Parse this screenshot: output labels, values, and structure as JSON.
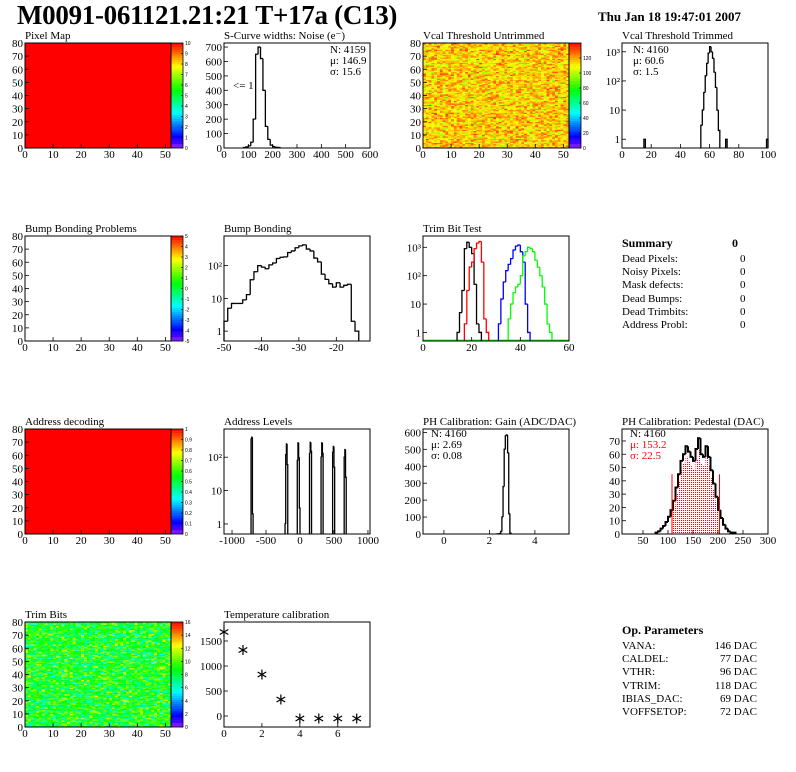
{
  "header": {
    "title": "M0091-061121.21:21 T+17a (C13)",
    "date": "Thu Jan 18 19:47:01 2007"
  },
  "summary": {
    "title": "Summary",
    "total": "0",
    "items": [
      {
        "label": "Dead Pixels:",
        "value": "0"
      },
      {
        "label": "Noisy Pixels:",
        "value": "0"
      },
      {
        "label": "Mask defects:",
        "value": "0"
      },
      {
        "label": "Dead Bumps:",
        "value": "0"
      },
      {
        "label": "Dead Trimbits:",
        "value": "0"
      },
      {
        "label": "Address Probl:",
        "value": "0"
      }
    ]
  },
  "op_parameters": {
    "title": "Op. Parameters",
    "items": [
      {
        "label": "VANA:",
        "value": "146 DAC"
      },
      {
        "label": "CALDEL:",
        "value": "77 DAC"
      },
      {
        "label": "VTHR:",
        "value": "96 DAC"
      },
      {
        "label": "VTRIM:",
        "value": "118 DAC"
      },
      {
        "label": "IBIAS_DAC:",
        "value": "69 DAC"
      },
      {
        "label": "VOFFSETOP:",
        "value": "72 DAC"
      }
    ]
  },
  "panels": [
    {
      "id": "pixel-map",
      "type": "map",
      "title": "Pixel Map",
      "xrange": [
        0,
        52
      ],
      "yrange": [
        0,
        80
      ],
      "xticks": [
        0,
        10,
        20,
        30,
        40,
        50
      ],
      "yticks": [
        0,
        10,
        20,
        30,
        40,
        50,
        60,
        70,
        80
      ],
      "zrange": [
        0,
        10
      ],
      "zticks": [
        0,
        1,
        2,
        3,
        4,
        5,
        6,
        7,
        8,
        9,
        10
      ],
      "fill": "uniform",
      "value": 10
    },
    {
      "id": "noise",
      "type": "hist",
      "title": "S-Curve widths: Noise (e⁻)",
      "xrange": [
        0,
        600
      ],
      "yrange": [
        0,
        728
      ],
      "xticks": [
        0,
        100,
        200,
        300,
        400,
        500,
        600
      ],
      "yticks": [
        0,
        100,
        200,
        300,
        400,
        500,
        600,
        700
      ],
      "bin_width": 10,
      "bins": [
        [
          80,
          3
        ],
        [
          90,
          8
        ],
        [
          100,
          15
        ],
        [
          110,
          40
        ],
        [
          120,
          200
        ],
        [
          130,
          650
        ],
        [
          140,
          700
        ],
        [
          150,
          620
        ],
        [
          160,
          400
        ],
        [
          170,
          150
        ],
        [
          180,
          60
        ],
        [
          190,
          20
        ],
        [
          200,
          10
        ],
        [
          210,
          5
        ],
        [
          220,
          3
        ]
      ],
      "stats": [
        "N: 4159",
        "μ: 146.9",
        "σ: 15.6"
      ],
      "annotation": "<= 1"
    },
    {
      "id": "vcal-untrimmed",
      "type": "map",
      "title": "Vcal Threshold Untrimmed",
      "xrange": [
        0,
        52
      ],
      "yrange": [
        0,
        80
      ],
      "xticks": [
        0,
        10,
        20,
        30,
        40,
        50
      ],
      "yticks": [
        0,
        10,
        20,
        30,
        40,
        50,
        60,
        70,
        80
      ],
      "zrange": [
        0,
        140
      ],
      "zticks": [
        0,
        20,
        40,
        60,
        80,
        100,
        120
      ],
      "fill": "random",
      "value_range": [
        95,
        135
      ]
    },
    {
      "id": "vcal-trimmed",
      "type": "hist",
      "title": "Vcal Threshold Trimmed",
      "xrange": [
        0,
        100
      ],
      "yrange": [
        0.5,
        2000
      ],
      "ylog": true,
      "xticks": [
        0,
        20,
        40,
        60,
        80,
        100
      ],
      "yticks": [
        1,
        10,
        100,
        1000
      ],
      "yticklabels": [
        "1",
        "10",
        "10²",
        "10³"
      ],
      "bin_width": 1,
      "bins": [
        [
          15,
          1
        ],
        [
          54,
          3
        ],
        [
          55,
          10
        ],
        [
          56,
          40
        ],
        [
          57,
          150
        ],
        [
          58,
          400
        ],
        [
          59,
          900
        ],
        [
          60,
          1500
        ],
        [
          61,
          1000
        ],
        [
          62,
          600
        ],
        [
          63,
          200
        ],
        [
          64,
          60
        ],
        [
          65,
          10
        ],
        [
          66,
          2
        ],
        [
          71,
          1
        ],
        [
          99,
          1
        ]
      ],
      "stats": [
        "N: 4160",
        "μ: 60.6",
        "σ:  1.5"
      ]
    },
    {
      "id": "bump-map",
      "type": "map",
      "title": "Bump Bonding Problems",
      "xrange": [
        0,
        52
      ],
      "yrange": [
        0,
        80
      ],
      "xticks": [
        0,
        10,
        20,
        30,
        40,
        50
      ],
      "yticks": [
        0,
        10,
        20,
        30,
        40,
        50,
        60,
        70,
        80
      ],
      "zrange": [
        -5,
        5
      ],
      "zticks": [
        -5,
        -4,
        -3,
        -2,
        -1,
        0,
        1,
        2,
        3,
        4,
        5
      ],
      "fill": "empty"
    },
    {
      "id": "bump-bonding",
      "type": "hist",
      "title": "Bump Bonding",
      "xrange": [
        -50,
        -11
      ],
      "yrange": [
        0.5,
        800
      ],
      "ylog": true,
      "xticks": [
        -50,
        -40,
        -30,
        -20
      ],
      "yticks": [
        1,
        10,
        100
      ],
      "yticklabels": [
        "1",
        "10",
        "10²"
      ],
      "bin_width": 1,
      "bins": [
        [
          -50,
          2
        ],
        [
          -49,
          5
        ],
        [
          -48,
          7
        ],
        [
          -47,
          7
        ],
        [
          -46,
          7
        ],
        [
          -45,
          9
        ],
        [
          -44,
          13
        ],
        [
          -43,
          37
        ],
        [
          -42,
          65
        ],
        [
          -41,
          100
        ],
        [
          -40,
          90
        ],
        [
          -39,
          80
        ],
        [
          -38,
          105
        ],
        [
          -37,
          120
        ],
        [
          -36,
          165
        ],
        [
          -35,
          180
        ],
        [
          -34,
          185
        ],
        [
          -33,
          250
        ],
        [
          -32,
          280
        ],
        [
          -31,
          350
        ],
        [
          -30,
          400
        ],
        [
          -29,
          430
        ],
        [
          -28,
          320
        ],
        [
          -27,
          280
        ],
        [
          -26,
          170
        ],
        [
          -25,
          130
        ],
        [
          -24,
          55
        ],
        [
          -23,
          38
        ],
        [
          -22,
          28
        ],
        [
          -21,
          22
        ],
        [
          -20,
          30
        ],
        [
          -19,
          22
        ],
        [
          -18,
          25
        ],
        [
          -17,
          27
        ],
        [
          -16,
          2
        ],
        [
          -15,
          1
        ]
      ]
    },
    {
      "id": "trim-bit-test",
      "type": "multihist",
      "title": "Trim Bit Test",
      "xrange": [
        0,
        60
      ],
      "yrange": [
        0.5,
        2500
      ],
      "ylog": true,
      "xticks": [
        0,
        20,
        40,
        60
      ],
      "yticks": [
        1,
        10,
        100,
        1000
      ],
      "yticklabels": [
        "1",
        "10",
        "10²",
        "10³"
      ],
      "bin_width": 1,
      "series": [
        {
          "name": "trim-bit-1",
          "color": "#000000",
          "bins": [
            [
              14,
              1
            ],
            [
              15,
              5
            ],
            [
              16,
              30
            ],
            [
              17,
              900
            ],
            [
              18,
              1500
            ],
            [
              19,
              1000
            ],
            [
              20,
              600
            ],
            [
              21,
              50
            ],
            [
              22,
              2
            ],
            [
              23,
              1
            ]
          ]
        },
        {
          "name": "trim-bit-2",
          "color": "#ff0000",
          "bins": [
            [
              17,
              2
            ],
            [
              18,
              30
            ],
            [
              19,
              200
            ],
            [
              20,
              300
            ],
            [
              21,
              900
            ],
            [
              22,
              1400
            ],
            [
              23,
              1600
            ],
            [
              24,
              300
            ],
            [
              25,
              3
            ],
            [
              26,
              1
            ]
          ]
        },
        {
          "name": "trim-bit-3",
          "color": "#0000ff",
          "bins": [
            [
              31,
              2
            ],
            [
              32,
              15
            ],
            [
              33,
              60
            ],
            [
              34,
              150
            ],
            [
              35,
              250
            ],
            [
              36,
              400
            ],
            [
              37,
              800
            ],
            [
              38,
              1100
            ],
            [
              39,
              1200
            ],
            [
              40,
              700
            ],
            [
              41,
              300
            ],
            [
              42,
              10
            ],
            [
              43,
              1
            ]
          ]
        },
        {
          "name": "trim-bit-4",
          "color": "#00ff00",
          "bins": [
            [
              35,
              3
            ],
            [
              36,
              10
            ],
            [
              37,
              25
            ],
            [
              38,
              40
            ],
            [
              39,
              50
            ],
            [
              40,
              100
            ],
            [
              41,
              500
            ],
            [
              42,
              700
            ],
            [
              43,
              1000
            ],
            [
              44,
              900
            ],
            [
              45,
              700
            ],
            [
              46,
              350
            ],
            [
              47,
              200
            ],
            [
              48,
              100
            ],
            [
              49,
              40
            ],
            [
              50,
              10
            ],
            [
              51,
              2
            ],
            [
              52,
              1
            ]
          ]
        }
      ]
    },
    {
      "id": "address-decoding",
      "type": "map",
      "title": "Address decoding",
      "xrange": [
        0,
        52
      ],
      "yrange": [
        0,
        80
      ],
      "xticks": [
        0,
        10,
        20,
        30,
        40,
        50
      ],
      "yticks": [
        0,
        10,
        20,
        30,
        40,
        50,
        60,
        70,
        80
      ],
      "zrange": [
        0,
        1
      ],
      "zticks": [
        0,
        0.1,
        0.2,
        0.3,
        0.4,
        0.5,
        0.6,
        0.7,
        0.8,
        0.9,
        1
      ],
      "fill": "uniform",
      "value": 1
    },
    {
      "id": "address-levels",
      "type": "hist",
      "title": "Address Levels",
      "xrange": [
        -1118,
        1030
      ],
      "yrange": [
        0.5,
        700
      ],
      "ylog": true,
      "xticks": [
        -1000,
        -500,
        0,
        500,
        1000
      ],
      "yticks": [
        1,
        10,
        100
      ],
      "yticklabels": [
        "1",
        "10",
        "10²"
      ],
      "bin_width": 10,
      "bins": [
        [
          -720,
          350
        ],
        [
          -710,
          400
        ],
        [
          -700,
          2
        ],
        [
          -220,
          1
        ],
        [
          -210,
          120
        ],
        [
          -200,
          250
        ],
        [
          -190,
          60
        ],
        [
          -40,
          80
        ],
        [
          -30,
          270
        ],
        [
          -20,
          100
        ],
        [
          -10,
          3
        ],
        [
          140,
          130
        ],
        [
          150,
          280
        ],
        [
          160,
          150
        ],
        [
          310,
          100
        ],
        [
          320,
          270
        ],
        [
          330,
          130
        ],
        [
          480,
          140
        ],
        [
          490,
          210
        ],
        [
          500,
          50
        ],
        [
          650,
          100
        ],
        [
          660,
          170
        ],
        [
          670,
          25
        ]
      ]
    },
    {
      "id": "ph-gain",
      "type": "hist",
      "title": "PH Calibration: Gain (ADC/DAC)",
      "xrange": [
        -0.92,
        5.5
      ],
      "yrange": [
        0,
        620
      ],
      "xticks": [
        0,
        2,
        4
      ],
      "yticks": [
        0,
        100,
        200,
        300,
        400,
        500,
        600
      ],
      "bin_width": 0.05,
      "bins": [
        [
          2.35,
          1
        ],
        [
          2.4,
          1
        ],
        [
          2.45,
          3
        ],
        [
          2.5,
          15
        ],
        [
          2.55,
          100
        ],
        [
          2.6,
          280
        ],
        [
          2.65,
          500
        ],
        [
          2.7,
          580
        ],
        [
          2.75,
          585
        ],
        [
          2.8,
          480
        ],
        [
          2.85,
          120
        ],
        [
          2.9,
          5
        ]
      ],
      "stats": [
        "N: 4160",
        "μ: 2.69",
        "σ: 0.08"
      ]
    },
    {
      "id": "ph-pedestal",
      "type": "hist",
      "title": "PH Calibration: Pedestal (DAC)",
      "xrange": [
        8,
        300
      ],
      "yrange": [
        0,
        79
      ],
      "xticks": [
        50,
        100,
        150,
        200,
        250,
        300
      ],
      "yticks": [
        0,
        10,
        20,
        30,
        40,
        50,
        60,
        70
      ],
      "bin_width": 5,
      "bins": [
        [
          75,
          1
        ],
        [
          80,
          2
        ],
        [
          85,
          4
        ],
        [
          90,
          6
        ],
        [
          95,
          9
        ],
        [
          100,
          13
        ],
        [
          105,
          18
        ],
        [
          110,
          25
        ],
        [
          115,
          35
        ],
        [
          120,
          45
        ],
        [
          125,
          55
        ],
        [
          130,
          60
        ],
        [
          135,
          66
        ],
        [
          140,
          62
        ],
        [
          145,
          58
        ],
        [
          150,
          55
        ],
        [
          155,
          64
        ],
        [
          160,
          72
        ],
        [
          165,
          60
        ],
        [
          170,
          58
        ],
        [
          175,
          66
        ],
        [
          180,
          58
        ],
        [
          185,
          48
        ],
        [
          190,
          38
        ],
        [
          195,
          28
        ],
        [
          200,
          18
        ],
        [
          205,
          12
        ],
        [
          210,
          7
        ],
        [
          215,
          4
        ],
        [
          220,
          2
        ],
        [
          225,
          1
        ],
        [
          230,
          1
        ]
      ],
      "fit_range": [
        108,
        203
      ],
      "fit_line_height": 45,
      "fit_color": "#ff0000",
      "stats": [
        "N: 4160",
        "μ: 153.2",
        "σ: 22.5"
      ],
      "stats_colors": [
        "#000000",
        "#ff0000",
        "#ff0000"
      ]
    },
    {
      "id": "trim-bits",
      "type": "map",
      "title": "Trim Bits",
      "xrange": [
        0,
        52
      ],
      "yrange": [
        0,
        80
      ],
      "xticks": [
        0,
        10,
        20,
        30,
        40,
        50
      ],
      "yticks": [
        0,
        10,
        20,
        30,
        40,
        50,
        60,
        70,
        80
      ],
      "zrange": [
        0,
        16
      ],
      "zticks": [
        0,
        2,
        4,
        6,
        8,
        10,
        12,
        14,
        16
      ],
      "fill": "random",
      "value_range": [
        5,
        12.5
      ]
    },
    {
      "id": "temperature-calibration",
      "type": "scatter",
      "title": "Temperature calibration",
      "xrange": [
        0,
        7.7
      ],
      "yrange": [
        -220,
        1880
      ],
      "xticks": [
        0,
        2,
        4,
        6
      ],
      "yticks": [
        0,
        500,
        1000,
        1500
      ],
      "points": [
        [
          0,
          1680
        ],
        [
          1,
          1320
        ],
        [
          2,
          830
        ],
        [
          3,
          330
        ],
        [
          4,
          -50
        ],
        [
          5,
          -50
        ],
        [
          6,
          -50
        ],
        [
          7,
          -50
        ]
      ]
    }
  ]
}
